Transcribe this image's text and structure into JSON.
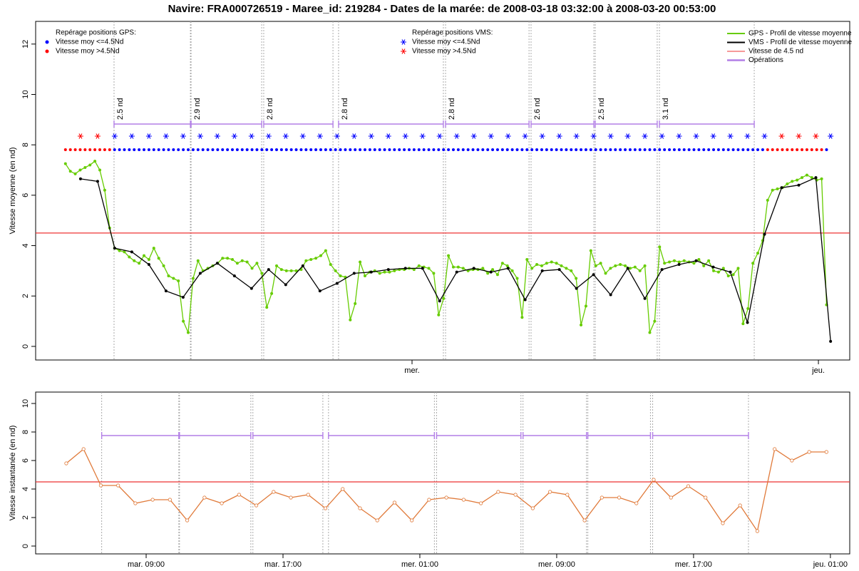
{
  "chart_data": [
    {
      "type": "line",
      "title": "Navire: FRA000726519 - Maree_id: 219284 - Dates de la marée: de 2008-03-18 03:32:00 à 2008-03-20 00:53:00",
      "ylabel": "Vitesse moyenne (en nd)",
      "xlim": [
        1.77,
        49.85
      ],
      "ylim": [
        -0.54,
        12.9
      ],
      "yticks": [
        0,
        2,
        4,
        6,
        8,
        10,
        12
      ],
      "xticks": [
        {
          "value": 24,
          "label": "mer."
        },
        {
          "value": 48,
          "label": "jeu."
        }
      ],
      "series": [
        {
          "name": "GPS - Profil de vitesse moyenne",
          "color": "#66cc00",
          "marker": "dot",
          "x": [
            3.53,
            3.82,
            4.11,
            4.4,
            4.69,
            4.98,
            5.27,
            5.56,
            5.85,
            6.14,
            6.43,
            6.72,
            7.01,
            7.3,
            7.59,
            7.88,
            8.17,
            8.46,
            8.75,
            9.04,
            9.33,
            9.62,
            9.91,
            10.2,
            10.49,
            10.78,
            11.07,
            11.36,
            11.65,
            11.94,
            12.23,
            12.52,
            12.81,
            13.1,
            13.39,
            13.68,
            13.97,
            14.26,
            14.55,
            14.84,
            15.13,
            15.42,
            15.71,
            16.0,
            16.29,
            16.58,
            16.87,
            17.16,
            17.45,
            17.74,
            18.03,
            18.32,
            18.61,
            18.9,
            19.19,
            19.48,
            19.77,
            20.06,
            20.35,
            20.64,
            20.93,
            21.22,
            21.51,
            21.8,
            22.09,
            22.38,
            22.67,
            22.96,
            23.25,
            23.54,
            23.83,
            24.12,
            24.41,
            24.7,
            24.99,
            25.28,
            25.57,
            25.86,
            26.15,
            26.44,
            26.73,
            27.02,
            27.31,
            27.6,
            27.89,
            28.18,
            28.47,
            28.76,
            29.05,
            29.34,
            29.63,
            29.92,
            30.21,
            30.5,
            30.79,
            31.08,
            31.37,
            31.66,
            31.95,
            32.24,
            32.53,
            32.82,
            33.11,
            33.4,
            33.69,
            33.98,
            34.27,
            34.56,
            34.85,
            35.14,
            35.43,
            35.72,
            36.01,
            36.3,
            36.59,
            36.88,
            37.17,
            37.46,
            37.75,
            38.04,
            38.33,
            38.62,
            38.91,
            39.2,
            39.49,
            39.78,
            40.07,
            40.36,
            40.65,
            40.94,
            41.23,
            41.52,
            41.81,
            42.1,
            42.39,
            42.68,
            42.97,
            43.26,
            43.55,
            43.84,
            44.13,
            44.42,
            44.71,
            45.0,
            45.29,
            45.58,
            45.87,
            46.16,
            46.45,
            46.74,
            47.03,
            47.32,
            47.61,
            47.9,
            48.19,
            48.48
          ],
          "values": [
            7.25,
            6.95,
            6.85,
            7.0,
            7.1,
            7.2,
            7.35,
            7.0,
            6.2,
            4.7,
            3.9,
            3.8,
            3.75,
            3.55,
            3.4,
            3.3,
            3.6,
            3.45,
            3.9,
            3.5,
            3.2,
            2.8,
            2.7,
            2.6,
            1.0,
            0.55,
            2.7,
            3.4,
            3.0,
            3.1,
            3.2,
            3.3,
            3.5,
            3.5,
            3.45,
            3.3,
            3.4,
            3.35,
            3.1,
            3.3,
            2.9,
            1.55,
            2.1,
            3.2,
            3.05,
            3.0,
            3.0,
            3.0,
            3.05,
            3.4,
            3.45,
            3.5,
            3.6,
            3.8,
            3.25,
            3.0,
            2.8,
            2.75,
            1.05,
            1.7,
            3.35,
            2.8,
            2.95,
            3.0,
            2.9,
            2.95,
            2.95,
            3.0,
            3.05,
            3.05,
            3.1,
            3.05,
            3.2,
            3.15,
            3.1,
            2.9,
            1.25,
            1.9,
            3.6,
            3.15,
            3.15,
            3.1,
            3.0,
            3.05,
            3.05,
            3.1,
            2.9,
            3.05,
            2.85,
            3.3,
            3.2,
            3.0,
            2.7,
            1.15,
            3.45,
            3.1,
            3.25,
            3.2,
            3.3,
            3.35,
            3.3,
            3.2,
            3.1,
            3.0,
            2.7,
            0.85,
            1.6,
            3.8,
            3.2,
            3.3,
            2.9,
            3.1,
            3.2,
            3.25,
            3.2,
            3.1,
            3.15,
            3.0,
            3.2,
            0.55,
            1.0,
            3.95,
            3.3,
            3.35,
            3.4,
            3.35,
            3.4,
            3.35,
            3.3,
            3.45,
            3.2,
            3.4,
            3.0,
            2.95,
            3.1,
            2.8,
            2.85,
            3.1,
            0.9,
            1.5,
            3.3,
            3.7,
            4.2,
            5.8,
            6.2,
            6.25,
            6.3,
            6.45,
            6.55,
            6.6,
            6.7,
            6.8,
            6.7,
            6.6,
            6.65,
            1.65
          ]
        },
        {
          "name": "VMS - Profil de vitesse moyenne",
          "color": "#000000",
          "marker": "dot",
          "x": [
            4.42,
            5.43,
            6.44,
            7.45,
            8.46,
            9.47,
            10.48,
            11.49,
            12.5,
            13.51,
            14.52,
            15.53,
            16.54,
            17.55,
            18.56,
            19.57,
            20.58,
            21.59,
            22.6,
            23.61,
            24.62,
            25.63,
            26.64,
            27.65,
            28.66,
            29.67,
            30.68,
            31.69,
            32.7,
            33.71,
            34.72,
            35.73,
            36.74,
            37.75,
            38.76,
            39.77,
            40.78,
            41.79,
            42.8,
            43.81,
            44.82,
            45.83,
            46.84,
            47.85,
            48.72
          ],
          "values": [
            6.65,
            6.55,
            3.9,
            3.75,
            3.25,
            2.2,
            1.95,
            2.9,
            3.3,
            2.8,
            2.3,
            3.05,
            2.45,
            3.2,
            2.2,
            2.5,
            2.9,
            2.95,
            3.05,
            3.1,
            3.1,
            1.8,
            2.95,
            3.1,
            2.95,
            3.1,
            1.85,
            3.0,
            3.05,
            2.3,
            2.85,
            2.05,
            3.1,
            1.9,
            3.05,
            3.25,
            3.4,
            3.15,
            2.95,
            0.95,
            4.45,
            6.3,
            6.4,
            6.7,
            0.2
          ]
        }
      ],
      "hline": {
        "name": "Vitesse de 4.5 nd",
        "value": 4.5,
        "color": "#ee3333"
      },
      "operations": {
        "name": "Opérations",
        "color": "#b27fe6",
        "items": [
          {
            "start": 6.4,
            "end": 10.91,
            "label": "2.5 nd"
          },
          {
            "start": 10.95,
            "end": 15.12,
            "label": "2.9 nd"
          },
          {
            "start": 15.24,
            "end": 19.33,
            "label": "2.8 nd"
          },
          {
            "start": 19.66,
            "end": 25.85,
            "label": "2.8 nd"
          },
          {
            "start": 25.98,
            "end": 30.91,
            "label": "2.8 nd"
          },
          {
            "start": 31.03,
            "end": 34.74,
            "label": "2.6 nd"
          },
          {
            "start": 34.82,
            "end": 38.48,
            "label": "2.5 nd"
          },
          {
            "start": 38.61,
            "end": 44.21,
            "label": "3.1 nd"
          }
        ]
      },
      "position_legends": [
        {
          "title": "Repérage positions GPS:",
          "shape": "dot",
          "entries": [
            {
              "name": "Vitesse moy <=4.5Nd",
              "color": "#0000ff"
            },
            {
              "name": "Vitesse moy >4.5Nd",
              "color": "#ff0000"
            }
          ]
        },
        {
          "title": "Repérage positions VMS:",
          "shape": "star",
          "entries": [
            {
              "name": "Vitesse moy <=4.5Nd",
              "color": "#0000ff"
            },
            {
              "name": "Vitesse moy >4.5Nd",
              "color": "#ff0000"
            }
          ]
        }
      ],
      "legend": "top-right"
    },
    {
      "type": "line",
      "ylabel": "Vitesse instantanée (en nd)",
      "xlim": [
        2.54,
        50.13
      ],
      "ylim": [
        -0.55,
        10.8
      ],
      "yticks": [
        0,
        2,
        4,
        6,
        8,
        10
      ],
      "xticks": [
        {
          "value": 9,
          "label": "mar. 09:00"
        },
        {
          "value": 17,
          "label": "mar. 17:00"
        },
        {
          "value": 25,
          "label": "mer. 01:00"
        },
        {
          "value": 33,
          "label": "mer. 09:00"
        },
        {
          "value": 41,
          "label": "mer. 17:00"
        },
        {
          "value": 49,
          "label": "jeu. 01:00"
        }
      ],
      "series": [
        {
          "color": "#e07a3a",
          "marker": "open",
          "x": [
            4.33,
            5.34,
            6.35,
            7.36,
            8.37,
            9.38,
            10.39,
            11.4,
            12.41,
            13.42,
            14.43,
            15.44,
            16.45,
            17.46,
            18.47,
            19.48,
            20.49,
            21.5,
            22.51,
            23.52,
            24.53,
            25.54,
            26.55,
            27.56,
            28.57,
            29.58,
            30.59,
            31.6,
            32.61,
            33.62,
            34.63,
            35.64,
            36.65,
            37.66,
            38.67,
            39.68,
            40.69,
            41.7,
            42.71,
            43.72,
            44.73,
            45.74,
            46.75,
            47.76,
            48.77
          ],
          "values": [
            5.8,
            6.8,
            4.25,
            4.25,
            3.0,
            3.25,
            3.25,
            1.8,
            3.4,
            3.0,
            3.6,
            2.85,
            3.8,
            3.4,
            3.6,
            2.65,
            4.0,
            2.65,
            1.8,
            3.05,
            1.8,
            3.25,
            3.4,
            3.25,
            3.0,
            3.8,
            3.6,
            2.65,
            3.8,
            3.6,
            1.8,
            3.4,
            3.4,
            3.0,
            4.65,
            3.4,
            4.2,
            3.4,
            1.6,
            2.85,
            1.05,
            6.8,
            6.0,
            6.6,
            6.6
          ]
        }
      ],
      "hline": {
        "value": 4.5,
        "color": "#ee3333"
      },
      "operations": {
        "color": "#b27fe6",
        "items": [
          {
            "start": 6.4,
            "end": 10.91
          },
          {
            "start": 10.95,
            "end": 15.12
          },
          {
            "start": 15.24,
            "end": 19.33
          },
          {
            "start": 19.66,
            "end": 25.85
          },
          {
            "start": 25.98,
            "end": 30.91
          },
          {
            "start": 31.03,
            "end": 34.74
          },
          {
            "start": 34.82,
            "end": 38.48
          },
          {
            "start": 38.61,
            "end": 44.21
          }
        ]
      }
    }
  ]
}
